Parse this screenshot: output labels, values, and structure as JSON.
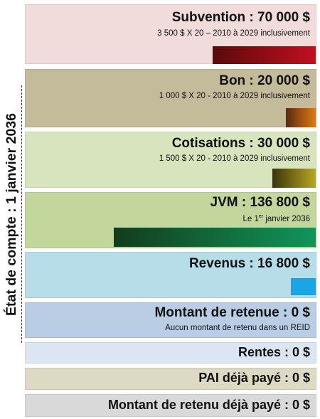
{
  "side_label": "État de compte : 1 janvier 2036",
  "panels": {
    "subvention": {
      "title": "Subvention : 70 000 $",
      "subtitle": "3 500 $ X 20 – 2010 à 2029 inclusivement",
      "background": "#f1dcdb",
      "bar_gradient": [
        "#5a0a0a",
        "#c0101e"
      ],
      "amount": 70000
    },
    "bon": {
      "title": "Bon : 20 000 $",
      "subtitle": "1 000 $ X 20 - 2010 à 2029 inclusivement",
      "background": "#c4bb9b",
      "bar_gradient": [
        "#5a2a10",
        "#e07a10"
      ],
      "amount": 20000
    },
    "cotisations": {
      "title": "Cotisations : 30 000 $",
      "subtitle": "1 500 $ X 20 - 2010 à 2029 inclusivement",
      "background": "#d8e4bd",
      "bar_gradient": [
        "#3b330a",
        "#b8a820"
      ],
      "amount": 30000
    },
    "jvm": {
      "title": "JVM : 136 800 $",
      "subtitle_before": "Le 1",
      "subtitle_sup": "er",
      "subtitle_after": " janvier 2036",
      "background": "#c3d69b",
      "bar_gradient": [
        "#123d1c",
        "#11955a"
      ],
      "amount": 136800
    },
    "revenus": {
      "title": "Revenus : 16 800 $",
      "background": "#b7dee8",
      "bar_color": "#1aa6e6",
      "amount": 16800
    },
    "retenue": {
      "title": "Montant de retenue : 0 $",
      "subtitle": "Aucun montant de retenu dans un REID",
      "background": "#b9cde5"
    },
    "rentes": {
      "title": "Rentes : 0 $",
      "background": "#dce6f2"
    },
    "pai": {
      "title": "PAI déjà payé : 0 $",
      "background": "#ddd9c3"
    },
    "retenu_paye": {
      "title": "Montant de retenu déjà payé : 0 $",
      "background": "#d9d9d9"
    }
  }
}
